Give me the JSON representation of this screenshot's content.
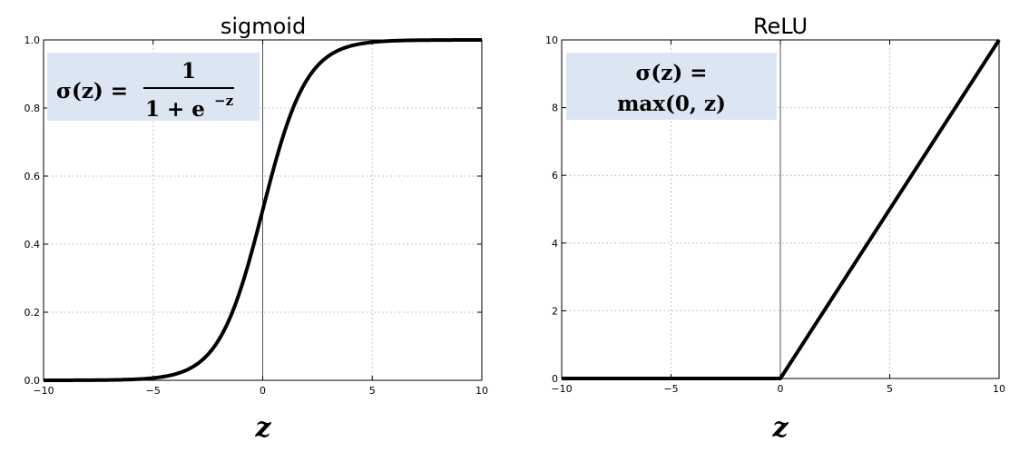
{
  "chart_data": [
    {
      "type": "line",
      "title": "sigmoid",
      "xlabel": "z",
      "ylabel": "",
      "xlim": [
        -10,
        10
      ],
      "ylim": [
        0,
        1
      ],
      "grid": true,
      "xticks": [
        -10,
        -5,
        0,
        5,
        10
      ],
      "xtick_labels": [
        "−10",
        "−5",
        "0",
        "5",
        "10"
      ],
      "yticks": [
        0,
        0.2,
        0.4,
        0.6,
        0.8,
        1
      ],
      "ytick_labels": [
        "0.0",
        "0.2",
        "0.4",
        "0.6",
        "0.8",
        "1.0"
      ],
      "series": [
        {
          "function": "sigmoid",
          "x": [
            -10,
            -8,
            -6,
            -5,
            -4,
            -3,
            -2,
            -1,
            0,
            1,
            2,
            3,
            4,
            5,
            6,
            8,
            10
          ],
          "y": [
            5e-05,
            0.0003,
            0.0025,
            0.0067,
            0.018,
            0.047,
            0.119,
            0.269,
            0.5,
            0.731,
            0.881,
            0.953,
            0.982,
            0.9933,
            0.9975,
            0.9997,
            0.99995
          ]
        }
      ],
      "annotation": {
        "lhs": "σ(z) =",
        "numerator": "1",
        "denominator": "1 + e",
        "superscript": "−z"
      }
    },
    {
      "type": "line",
      "title": "ReLU",
      "xlabel": "z",
      "ylabel": "",
      "xlim": [
        -10,
        10
      ],
      "ylim": [
        0,
        10
      ],
      "grid": true,
      "xticks": [
        -10,
        -5,
        0,
        5,
        10
      ],
      "xtick_labels": [
        "−10",
        "−5",
        "0",
        "5",
        "10"
      ],
      "yticks": [
        0,
        2,
        4,
        6,
        8,
        10
      ],
      "ytick_labels": [
        "0",
        "2",
        "4",
        "6",
        "8",
        "10"
      ],
      "series": [
        {
          "function": "relu",
          "x": [
            -10,
            0,
            10
          ],
          "y": [
            0,
            0,
            10
          ]
        }
      ],
      "annotation": {
        "line1": "σ(z) =",
        "line2": "max(0, z)"
      }
    }
  ],
  "colors": {
    "curve": "#000000",
    "grid": "#b0b0b0",
    "formula_box": "#dce6f2"
  }
}
